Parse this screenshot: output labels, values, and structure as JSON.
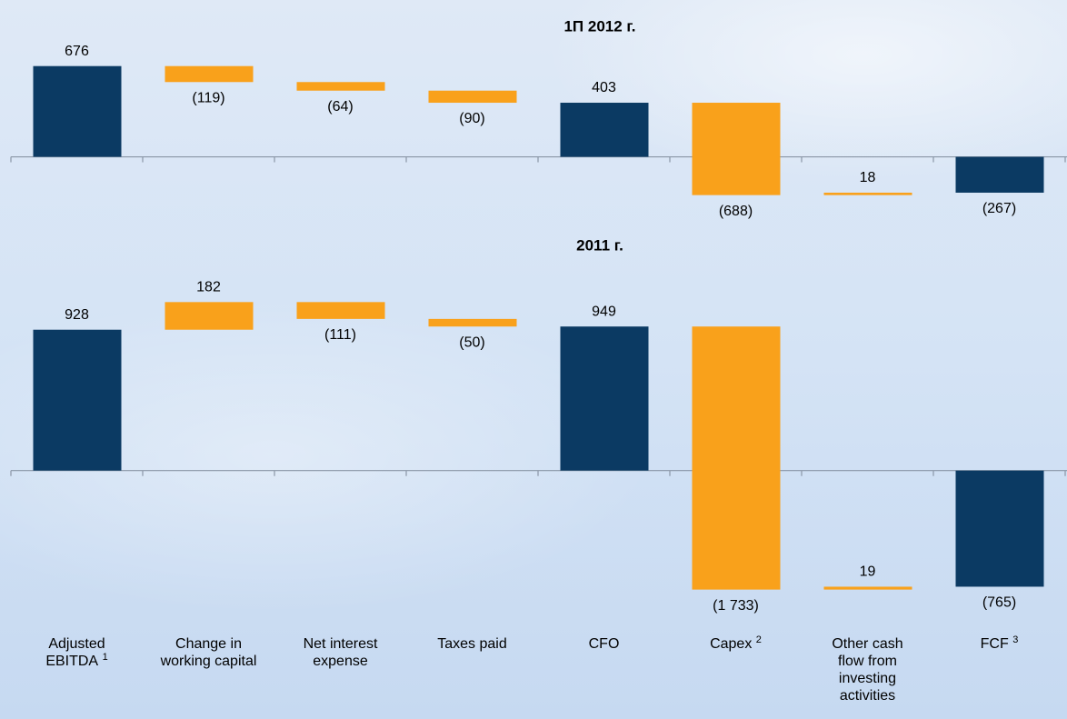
{
  "chart_data": [
    {
      "type": "waterfall",
      "title": "1П 2012 г.",
      "values": [
        676,
        -119,
        -64,
        -90,
        403,
        -688,
        18,
        -267
      ],
      "value_labels": [
        "676",
        "(119)",
        "(64)",
        "(90)",
        "403",
        "(688)",
        "18",
        "(267)"
      ],
      "totals": [
        true,
        false,
        false,
        false,
        true,
        false,
        false,
        true
      ],
      "total_color": "#0b3a63",
      "change_color": "#f9a11b",
      "ylim": [
        -450,
        850
      ]
    },
    {
      "type": "waterfall",
      "title": "2011 г.",
      "categories": [
        "Adjusted EBITDA",
        "Change in working capital",
        "Net interest expense",
        "Taxes paid",
        "CFO",
        "Capex",
        "Other cash flow from investing activities",
        "FCF"
      ],
      "category_notes": [
        "1",
        null,
        null,
        null,
        null,
        "2",
        null,
        "3"
      ],
      "values": [
        928,
        182,
        -111,
        -50,
        949,
        -1733,
        19,
        -765
      ],
      "value_labels": [
        "928",
        "182",
        "(111)",
        "(50)",
        "949",
        "(1 733)",
        "19",
        "(765)"
      ],
      "totals": [
        true,
        false,
        false,
        false,
        true,
        false,
        false,
        true
      ],
      "total_color": "#0b3a63",
      "change_color": "#f9a11b",
      "ylim": [
        -900,
        1100
      ]
    }
  ]
}
